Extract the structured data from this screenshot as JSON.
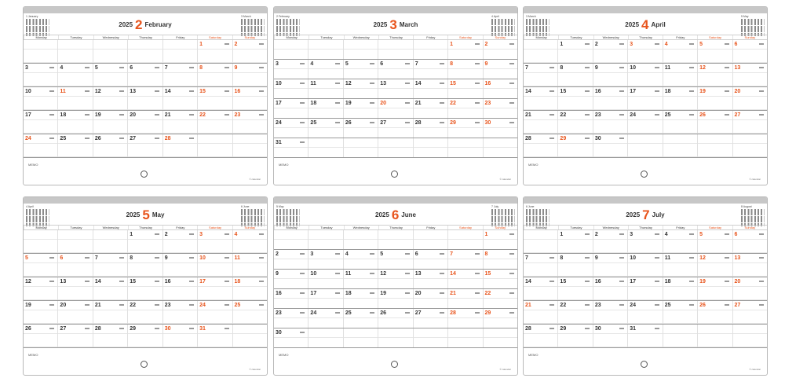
{
  "weekdays": [
    {
      "label": "Monday",
      "red": false
    },
    {
      "label": "Tuesday",
      "red": false
    },
    {
      "label": "Wednesday",
      "red": false
    },
    {
      "label": "Thursday",
      "red": false
    },
    {
      "label": "Friday",
      "red": false
    },
    {
      "label": "Saturday",
      "red": true
    },
    {
      "label": "Sunday",
      "red": true
    }
  ],
  "memo_label": "MEMO",
  "footer_text": "© calendar",
  "accent_color": "#e8541c",
  "pages": [
    {
      "year": "2025",
      "month_num": "2",
      "month_name": "February",
      "mini_prev": "1 January",
      "mini_next": "3 March",
      "weeks": [
        [
          null,
          null,
          null,
          null,
          null,
          1,
          2
        ],
        [
          3,
          4,
          5,
          6,
          7,
          8,
          9
        ],
        [
          10,
          11,
          12,
          13,
          14,
          15,
          16
        ],
        [
          17,
          18,
          19,
          20,
          21,
          22,
          23
        ],
        [
          24,
          25,
          26,
          27,
          28,
          null,
          null
        ]
      ],
      "red_days": [
        1,
        2,
        8,
        9,
        11,
        15,
        16,
        22,
        23,
        24,
        28
      ]
    },
    {
      "year": "2025",
      "month_num": "3",
      "month_name": "March",
      "mini_prev": "2 February",
      "mini_next": "4 April",
      "weeks": [
        [
          null,
          null,
          null,
          null,
          null,
          1,
          2
        ],
        [
          3,
          4,
          5,
          6,
          7,
          8,
          9
        ],
        [
          10,
          11,
          12,
          13,
          14,
          15,
          16
        ],
        [
          17,
          18,
          19,
          20,
          21,
          22,
          23
        ],
        [
          24,
          25,
          26,
          27,
          28,
          29,
          30
        ],
        [
          31,
          null,
          null,
          null,
          null,
          null,
          null
        ]
      ],
      "red_days": [
        1,
        2,
        8,
        9,
        15,
        16,
        20,
        22,
        23,
        29,
        30
      ]
    },
    {
      "year": "2025",
      "month_num": "4",
      "month_name": "April",
      "mini_prev": "3 March",
      "mini_next": "5 May",
      "weeks": [
        [
          null,
          1,
          2,
          3,
          4,
          5,
          6
        ],
        [
          7,
          8,
          9,
          10,
          11,
          12,
          13
        ],
        [
          14,
          15,
          16,
          17,
          18,
          19,
          20
        ],
        [
          21,
          22,
          23,
          24,
          25,
          26,
          27
        ],
        [
          28,
          29,
          30,
          null,
          null,
          null,
          null
        ]
      ],
      "red_days": [
        3,
        4,
        5,
        6,
        12,
        13,
        19,
        20,
        26,
        27,
        29
      ]
    },
    {
      "year": "2025",
      "month_num": "5",
      "month_name": "May",
      "mini_prev": "4 April",
      "mini_next": "6 June",
      "weeks": [
        [
          null,
          null,
          null,
          1,
          2,
          3,
          4
        ],
        [
          5,
          6,
          7,
          8,
          9,
          10,
          11
        ],
        [
          12,
          13,
          14,
          15,
          16,
          17,
          18
        ],
        [
          19,
          20,
          21,
          22,
          23,
          24,
          25
        ],
        [
          26,
          27,
          28,
          29,
          30,
          31,
          null
        ]
      ],
      "red_days": [
        3,
        4,
        5,
        6,
        10,
        11,
        17,
        18,
        24,
        25,
        30,
        31
      ]
    },
    {
      "year": "2025",
      "month_num": "6",
      "month_name": "June",
      "mini_prev": "5 May",
      "mini_next": "7 July",
      "weeks": [
        [
          null,
          null,
          null,
          null,
          null,
          null,
          1
        ],
        [
          2,
          3,
          4,
          5,
          6,
          7,
          8
        ],
        [
          9,
          10,
          11,
          12,
          13,
          14,
          15
        ],
        [
          16,
          17,
          18,
          19,
          20,
          21,
          22
        ],
        [
          23,
          24,
          25,
          26,
          27,
          28,
          29
        ],
        [
          30,
          null,
          null,
          null,
          null,
          null,
          null
        ]
      ],
      "red_days": [
        1,
        7,
        8,
        14,
        15,
        21,
        22,
        28,
        29
      ]
    },
    {
      "year": "2025",
      "month_num": "7",
      "month_name": "July",
      "mini_prev": "6 June",
      "mini_next": "8 August",
      "weeks": [
        [
          null,
          1,
          2,
          3,
          4,
          5,
          6
        ],
        [
          7,
          8,
          9,
          10,
          11,
          12,
          13
        ],
        [
          14,
          15,
          16,
          17,
          18,
          19,
          20
        ],
        [
          21,
          22,
          23,
          24,
          25,
          26,
          27
        ],
        [
          28,
          29,
          30,
          31,
          null,
          null,
          null
        ]
      ],
      "red_days": [
        5,
        6,
        12,
        13,
        19,
        20,
        21,
        26,
        27
      ]
    }
  ]
}
